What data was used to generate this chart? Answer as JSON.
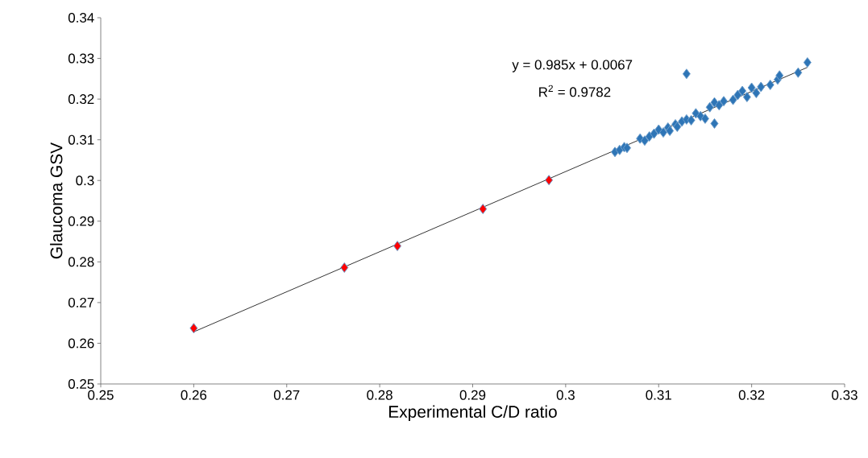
{
  "chart_data": {
    "type": "scatter",
    "xlabel": "Experimental C/D ratio",
    "ylabel": "Glaucoma GSV",
    "xlim": [
      0.25,
      0.33
    ],
    "ylim": [
      0.25,
      0.34
    ],
    "xticks": [
      0.25,
      0.26,
      0.27,
      0.28,
      0.29,
      0.3,
      0.31,
      0.32,
      0.33
    ],
    "yticks": [
      0.25,
      0.26,
      0.27,
      0.28,
      0.29,
      0.3,
      0.31,
      0.32,
      0.33,
      0.34
    ],
    "grid": false,
    "marker": "diamond",
    "annotations": [
      "y = 0.985x + 0.0067",
      "R$^{2}$ = 0.9782"
    ],
    "series": [
      {
        "color": "#2e75b6",
        "x": [
          0.3053,
          0.3058,
          0.3063,
          0.3066,
          0.308,
          0.3085,
          0.309,
          0.3095,
          0.31,
          0.3105,
          0.311,
          0.3112,
          0.3118,
          0.312,
          0.3125,
          0.313,
          0.3135,
          0.314,
          0.3145,
          0.315,
          0.3155,
          0.316,
          0.316,
          0.3165,
          0.317,
          0.318,
          0.3185,
          0.319,
          0.3195,
          0.32,
          0.3205,
          0.321,
          0.322,
          0.3228,
          0.323,
          0.325,
          0.326,
          0.313
        ],
        "values": [
          0.307,
          0.3075,
          0.3082,
          0.308,
          0.3103,
          0.3098,
          0.3108,
          0.3115,
          0.3125,
          0.3118,
          0.313,
          0.3122,
          0.3138,
          0.3132,
          0.3145,
          0.315,
          0.3148,
          0.3165,
          0.3158,
          0.3152,
          0.318,
          0.3192,
          0.314,
          0.3185,
          0.3195,
          0.3198,
          0.321,
          0.322,
          0.3205,
          0.3228,
          0.3215,
          0.323,
          0.3235,
          0.3248,
          0.3258,
          0.3265,
          0.329,
          0.3262
        ]
      },
      {
        "color": "#ff0000",
        "x": [
          0.26,
          0.2762,
          0.2819,
          0.2911,
          0.2982
        ],
        "values": [
          0.2637,
          0.2786,
          0.2839,
          0.293,
          0.3001
        ]
      },
      {
        "type": "line",
        "color": "#000000",
        "marker": "none",
        "x": [
          0.26,
          0.326
        ],
        "values": [
          0.2628,
          0.3278
        ]
      }
    ]
  }
}
